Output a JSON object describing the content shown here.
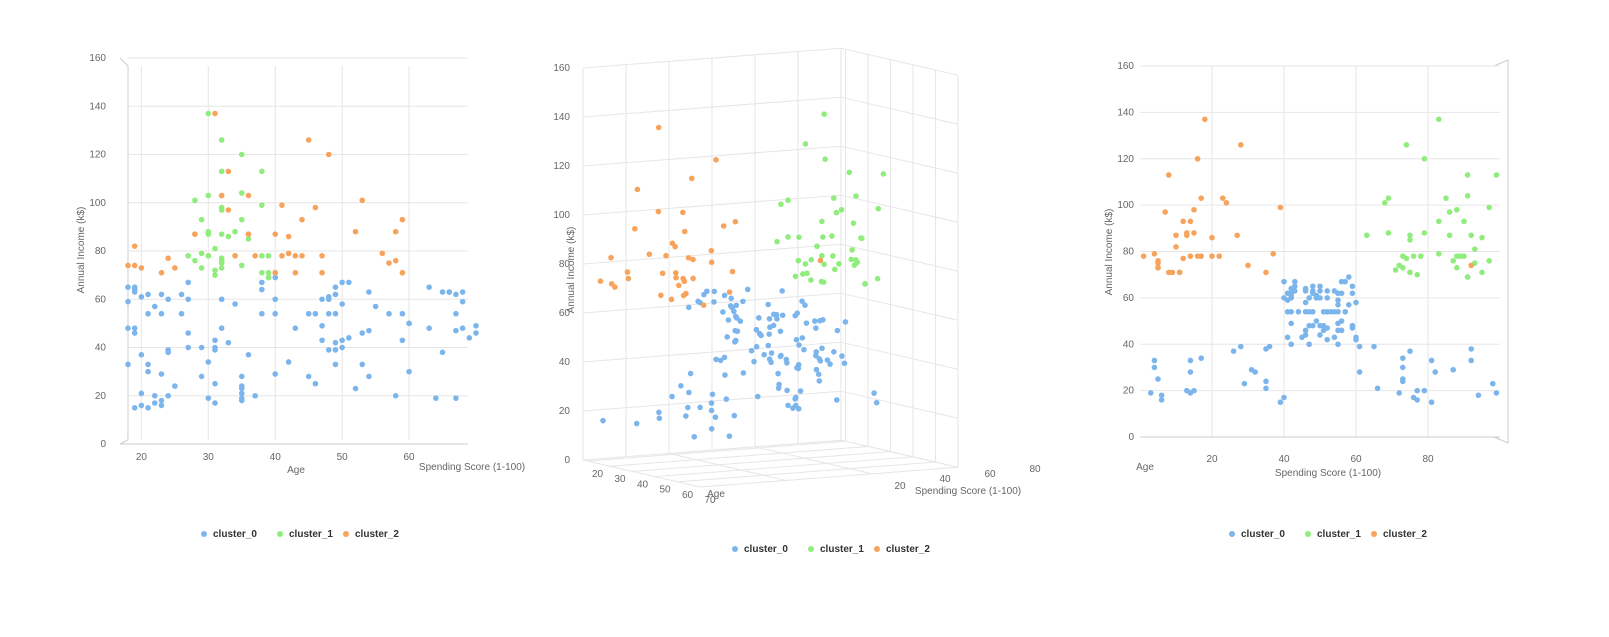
{
  "colors": {
    "cluster_0": "#7cb5ec",
    "cluster_1": "#90ed7d",
    "cluster_2": "#f7a35c"
  },
  "chart_data": [
    {
      "type": "scatter",
      "view": "age-income (front)",
      "xlabel": "Age",
      "ylabel": "Annual Income (k$)",
      "zlabel": "Spending Score (1-100)",
      "xticks": [
        "20",
        "30",
        "40",
        "50",
        "60"
      ],
      "yticks": [
        "0",
        "20",
        "40",
        "60",
        "80",
        "100",
        "120",
        "140",
        "160"
      ],
      "xlim": [
        18,
        70
      ],
      "ylim": [
        0,
        160
      ],
      "legend": [
        "cluster_0",
        "cluster_1",
        "cluster_2"
      ],
      "legend_position": "bottom"
    },
    {
      "type": "scatter",
      "view": "3d rotated",
      "xlabel": "Age",
      "ylabel": "Annual Income (k$)",
      "zlabel": "Spending Score (1-100)",
      "xticks": [
        "20",
        "30",
        "40",
        "50",
        "60",
        "70"
      ],
      "yticks": [
        "0",
        "20",
        "40",
        "60",
        "80",
        "100",
        "120",
        "140",
        "160"
      ],
      "zticks": [
        "20",
        "40",
        "60",
        "80"
      ],
      "xlim": [
        18,
        70
      ],
      "ylim": [
        0,
        160
      ],
      "zlim": [
        0,
        100
      ],
      "legend": [
        "cluster_0",
        "cluster_1",
        "cluster_2"
      ],
      "legend_position": "bottom"
    },
    {
      "type": "scatter",
      "view": "spending-income (side)",
      "xlabel": "Spending Score (1-100)",
      "ylabel": "Annual Income (k$)",
      "zlabel": "Age",
      "xticks": [
        "20",
        "40",
        "60",
        "80"
      ],
      "yticks": [
        "0",
        "20",
        "40",
        "60",
        "80",
        "100",
        "120",
        "140",
        "160"
      ],
      "xlim": [
        0,
        100
      ],
      "ylim": [
        0,
        160
      ],
      "legend": [
        "cluster_0",
        "cluster_1",
        "cluster_2"
      ],
      "legend_position": "bottom"
    }
  ],
  "points": {
    "cluster_0": [
      [
        19,
        15,
        39
      ],
      [
        21,
        15,
        81
      ],
      [
        20,
        16,
        6
      ],
      [
        23,
        16,
        77
      ],
      [
        31,
        17,
        40
      ],
      [
        22,
        17,
        76
      ],
      [
        35,
        18,
        6
      ],
      [
        23,
        18,
        94
      ],
      [
        64,
        19,
        3
      ],
      [
        30,
        19,
        72
      ],
      [
        67,
        19,
        14
      ],
      [
        35,
        19,
        99
      ],
      [
        58,
        20,
        15
      ],
      [
        24,
        20,
        77
      ],
      [
        37,
        20,
        13
      ],
      [
        22,
        20,
        79
      ],
      [
        35,
        21,
        35
      ],
      [
        20,
        21,
        66
      ],
      [
        52,
        23,
        29
      ],
      [
        35,
        23,
        98
      ],
      [
        35,
        24,
        35
      ],
      [
        25,
        24,
        73
      ],
      [
        46,
        25,
        5
      ],
      [
        31,
        25,
        73
      ],
      [
        54,
        28,
        14
      ],
      [
        29,
        28,
        82
      ],
      [
        45,
        28,
        32
      ],
      [
        35,
        28,
        61
      ],
      [
        40,
        29,
        31
      ],
      [
        23,
        29,
        87
      ],
      [
        60,
        30,
        4
      ],
      [
        21,
        30,
        73
      ],
      [
        53,
        33,
        4
      ],
      [
        18,
        33,
        92
      ],
      [
        49,
        33,
        14
      ],
      [
        21,
        33,
        81
      ],
      [
        42,
        34,
        17
      ],
      [
        30,
        34,
        73
      ],
      [
        36,
        37,
        26
      ],
      [
        20,
        37,
        75
      ],
      [
        65,
        38,
        35
      ],
      [
        24,
        38,
        92
      ],
      [
        48,
        39,
        36
      ],
      [
        31,
        39,
        61
      ],
      [
        49,
        39,
        28
      ],
      [
        24,
        39,
        65
      ],
      [
        50,
        40,
        55
      ],
      [
        27,
        40,
        47
      ],
      [
        29,
        40,
        42
      ],
      [
        31,
        40,
        42
      ],
      [
        49,
        42,
        52
      ],
      [
        33,
        42,
        60
      ],
      [
        31,
        43,
        54
      ],
      [
        59,
        43,
        60
      ],
      [
        50,
        43,
        45
      ],
      [
        47,
        43,
        41
      ],
      [
        51,
        44,
        50
      ],
      [
        69,
        44,
        46
      ],
      [
        27,
        46,
        51
      ],
      [
        53,
        46,
        46
      ],
      [
        70,
        46,
        56
      ],
      [
        19,
        46,
        55
      ],
      [
        67,
        47,
        52
      ],
      [
        54,
        47,
        59
      ],
      [
        63,
        48,
        51
      ],
      [
        18,
        48,
        59
      ],
      [
        43,
        48,
        50
      ],
      [
        68,
        48,
        48
      ],
      [
        19,
        48,
        59
      ],
      [
        32,
        48,
        47
      ],
      [
        70,
        49,
        55
      ],
      [
        47,
        49,
        42
      ],
      [
        60,
        50,
        49
      ],
      [
        60,
        50,
        56
      ],
      [
        59,
        54,
        47
      ],
      [
        26,
        54,
        54
      ],
      [
        45,
        54,
        53
      ],
      [
        40,
        54,
        48
      ],
      [
        23,
        54,
        52
      ],
      [
        49,
        54,
        42
      ],
      [
        57,
        54,
        51
      ],
      [
        38,
        54,
        55
      ],
      [
        67,
        54,
        41
      ],
      [
        46,
        54,
        44
      ],
      [
        21,
        54,
        57
      ],
      [
        48,
        54,
        46
      ],
      [
        55,
        57,
        58
      ],
      [
        22,
        57,
        55
      ],
      [
        34,
        58,
        60
      ],
      [
        50,
        58,
        46
      ],
      [
        68,
        59,
        55
      ],
      [
        18,
        59,
        41
      ],
      [
        48,
        60,
        49
      ],
      [
        40,
        60,
        40
      ],
      [
        32,
        60,
        42
      ],
      [
        24,
        60,
        52
      ],
      [
        47,
        60,
        47
      ],
      [
        27,
        60,
        50
      ],
      [
        48,
        61,
        42
      ],
      [
        20,
        61,
        49
      ],
      [
        23,
        62,
        41
      ],
      [
        49,
        62,
        48
      ],
      [
        67,
        62,
        59
      ],
      [
        26,
        62,
        55
      ],
      [
        49,
        62,
        56
      ],
      [
        21,
        62,
        42
      ],
      [
        66,
        63,
        50
      ],
      [
        54,
        63,
        46
      ],
      [
        68,
        63,
        43
      ],
      [
        66,
        63,
        48
      ],
      [
        65,
        63,
        52
      ],
      [
        19,
        63,
        54
      ],
      [
        38,
        64,
        42
      ],
      [
        19,
        64,
        46
      ],
      [
        18,
        65,
        48
      ],
      [
        19,
        65,
        50
      ],
      [
        63,
        65,
        43
      ],
      [
        49,
        65,
        59
      ],
      [
        51,
        67,
        43
      ],
      [
        50,
        67,
        57
      ],
      [
        27,
        67,
        56
      ],
      [
        38,
        67,
        40
      ],
      [
        40,
        69,
        58
      ],
      [
        39,
        69,
        91
      ]
    ],
    "cluster_1": [
      [
        39,
        69,
        91
      ],
      [
        31,
        70,
        77
      ],
      [
        40,
        71,
        95
      ],
      [
        38,
        71,
        75
      ],
      [
        39,
        71,
        75
      ],
      [
        31,
        72,
        71
      ],
      [
        29,
        73,
        88
      ],
      [
        32,
        73,
        73
      ],
      [
        35,
        74,
        72
      ],
      [
        32,
        75,
        93
      ],
      [
        32,
        76,
        87
      ],
      [
        28,
        76,
        97
      ],
      [
        32,
        77,
        74
      ],
      [
        34,
        78,
        90
      ],
      [
        39,
        78,
        88
      ],
      [
        38,
        78,
        76
      ],
      [
        27,
        78,
        89
      ],
      [
        30,
        78,
        73
      ],
      [
        30,
        78,
        78
      ],
      [
        29,
        79,
        83
      ],
      [
        31,
        81,
        93
      ],
      [
        36,
        85,
        75
      ],
      [
        33,
        86,
        95
      ],
      [
        32,
        87,
        63
      ],
      [
        28,
        87,
        75
      ],
      [
        36,
        87,
        92
      ],
      [
        30,
        87,
        86
      ],
      [
        30,
        88,
        69
      ],
      [
        34,
        88,
        79
      ],
      [
        29,
        93,
        83
      ],
      [
        35,
        93,
        90
      ],
      [
        32,
        97,
        86
      ],
      [
        32,
        98,
        88
      ],
      [
        38,
        99,
        97
      ],
      [
        28,
        101,
        68
      ],
      [
        32,
        103,
        85
      ],
      [
        30,
        103,
        69
      ],
      [
        35,
        104,
        91
      ],
      [
        32,
        113,
        91
      ],
      [
        38,
        113,
        99
      ],
      [
        35,
        120,
        79
      ],
      [
        32,
        126,
        74
      ],
      [
        30,
        137,
        83
      ]
    ],
    "cluster_2": [
      [
        43,
        71,
        35
      ],
      [
        40,
        71,
        11
      ],
      [
        59,
        71,
        11
      ],
      [
        47,
        71,
        9
      ],
      [
        58,
        76,
        5
      ],
      [
        18,
        74,
        92
      ],
      [
        19,
        74,
        30
      ],
      [
        23,
        71,
        8
      ],
      [
        43,
        78,
        17
      ],
      [
        58,
        88,
        15
      ],
      [
        24,
        77,
        12
      ],
      [
        37,
        78,
        1
      ],
      [
        34,
        78,
        22
      ],
      [
        41,
        78,
        16
      ],
      [
        44,
        78,
        20
      ],
      [
        47,
        78,
        14
      ],
      [
        42,
        86,
        20
      ],
      [
        40,
        87,
        13
      ],
      [
        36,
        87,
        10
      ],
      [
        28,
        87,
        27
      ],
      [
        46,
        98,
        15
      ],
      [
        52,
        88,
        13
      ],
      [
        42,
        79,
        37
      ],
      [
        57,
        75,
        5
      ],
      [
        25,
        73,
        5
      ],
      [
        41,
        99,
        39
      ],
      [
        20,
        73,
        5
      ],
      [
        19,
        82,
        10
      ],
      [
        33,
        113,
        8
      ],
      [
        45,
        126,
        28
      ],
      [
        31,
        137,
        18
      ],
      [
        44,
        93,
        12
      ],
      [
        59,
        93,
        14
      ],
      [
        53,
        101,
        24
      ],
      [
        48,
        120,
        16
      ],
      [
        36,
        103,
        23
      ],
      [
        32,
        103,
        17
      ],
      [
        33,
        97,
        7
      ],
      [
        56,
        79,
        4
      ]
    ]
  },
  "legend": [
    {
      "key": "cluster_0",
      "label": "cluster_0"
    },
    {
      "key": "cluster_1",
      "label": "cluster_1"
    },
    {
      "key": "cluster_2",
      "label": "cluster_2"
    }
  ]
}
